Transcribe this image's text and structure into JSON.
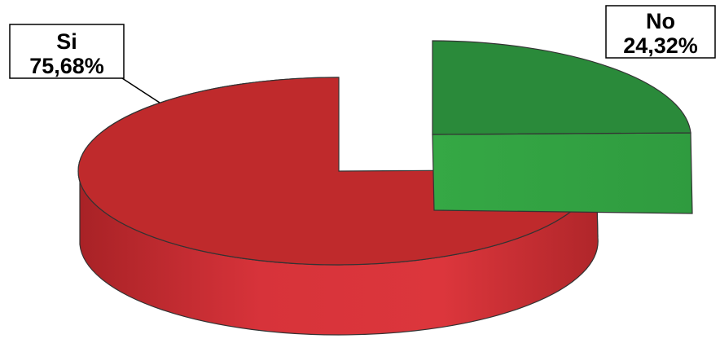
{
  "chart_data": {
    "type": "pie",
    "style": "3d-exploded",
    "title": "",
    "slices": [
      {
        "name": "Si",
        "value": 75.68,
        "label": "75,68%",
        "color_top": "#bf2a2c",
        "color_side": "#d9343a",
        "color_side_dark": "#b52428"
      },
      {
        "name": "No",
        "value": 24.32,
        "label": "24,32%",
        "color_top": "#2a8a3a",
        "color_side": "#3cb04a",
        "color_side_dark": "#2e9a3e"
      }
    ],
    "legend": "none",
    "data_labels": "callout-boxes"
  }
}
